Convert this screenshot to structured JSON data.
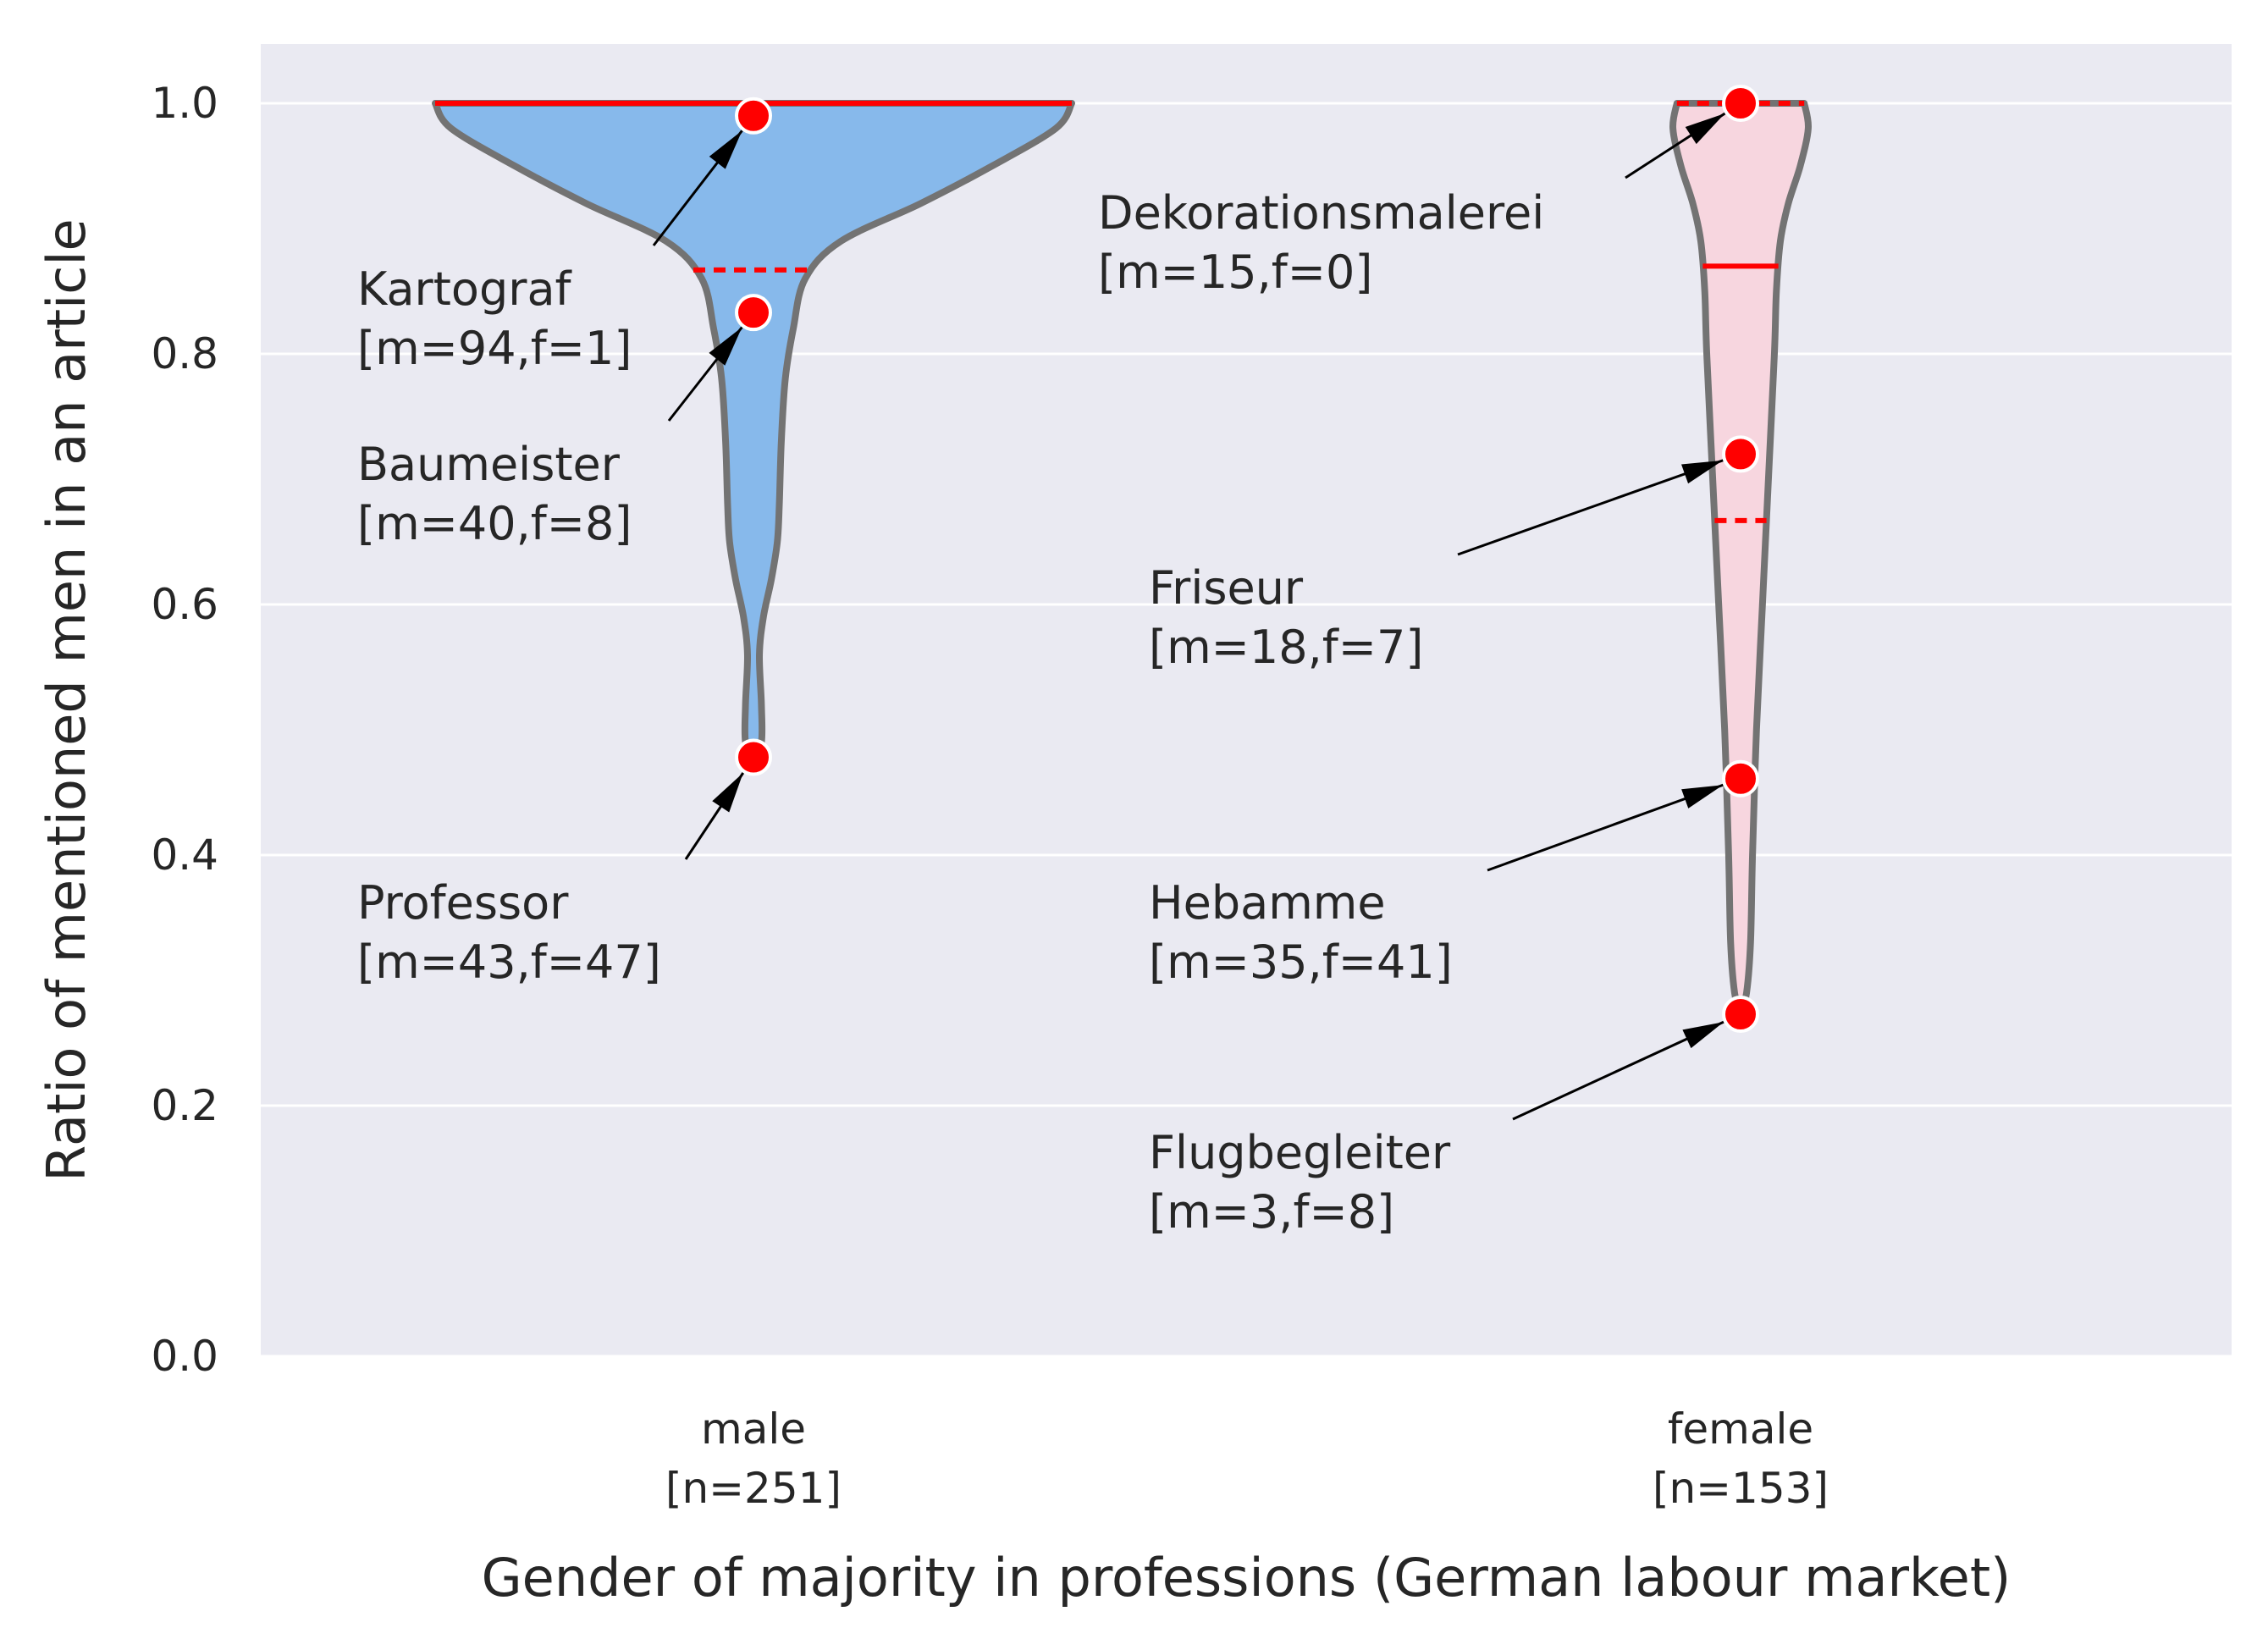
{
  "chart_data": {
    "type": "violin",
    "xlabel": "Gender of majority in professions (German labour market)",
    "ylabel": "Ratio of mentioned men in an article",
    "ylim": [
      0.0,
      1.05
    ],
    "yticks": [
      "0.0",
      "0.2",
      "0.4",
      "0.6",
      "0.8",
      "1.0"
    ],
    "grid": true,
    "categories": [
      {
        "key": "male",
        "label": "male",
        "n_label": "[n=251]",
        "color": "#87b9eb",
        "median": 1.0,
        "quartile": 0.867,
        "min": 0.477,
        "max": 1.0,
        "density": [
          {
            "y": 1.0,
            "w": 0.8
          },
          {
            "y": 0.98,
            "w": 0.76
          },
          {
            "y": 0.95,
            "w": 0.6
          },
          {
            "y": 0.92,
            "w": 0.42
          },
          {
            "y": 0.89,
            "w": 0.22
          },
          {
            "y": 0.86,
            "w": 0.13
          },
          {
            "y": 0.82,
            "w": 0.1
          },
          {
            "y": 0.78,
            "w": 0.08
          },
          {
            "y": 0.73,
            "w": 0.07
          },
          {
            "y": 0.68,
            "w": 0.065
          },
          {
            "y": 0.65,
            "w": 0.06
          },
          {
            "y": 0.62,
            "w": 0.045
          },
          {
            "y": 0.59,
            "w": 0.025
          },
          {
            "y": 0.56,
            "w": 0.015
          },
          {
            "y": 0.52,
            "w": 0.02
          },
          {
            "y": 0.49,
            "w": 0.02
          },
          {
            "y": 0.477,
            "w": 0.0
          }
        ],
        "points": [
          {
            "label": "Kartograf",
            "counts": "[m=94,f=1]",
            "value": 0.99
          },
          {
            "label": "Baumeister",
            "counts": "[m=40,f=8]",
            "value": 0.833
          },
          {
            "label": "Professor",
            "counts": "[m=43,f=47]",
            "value": 0.478
          }
        ]
      },
      {
        "key": "female",
        "label": "female",
        "n_label": "[n=153]",
        "color": "#f7d6df",
        "median": 0.87,
        "quartile": 0.667,
        "upper_quartile": 1.0,
        "min": 0.273,
        "max": 1.0,
        "density": [
          {
            "y": 1.0,
            "w": 0.16
          },
          {
            "y": 0.98,
            "w": 0.17
          },
          {
            "y": 0.95,
            "w": 0.15
          },
          {
            "y": 0.92,
            "w": 0.12
          },
          {
            "y": 0.89,
            "w": 0.1
          },
          {
            "y": 0.85,
            "w": 0.09
          },
          {
            "y": 0.8,
            "w": 0.085
          },
          {
            "y": 0.7,
            "w": 0.07
          },
          {
            "y": 0.6,
            "w": 0.055
          },
          {
            "y": 0.5,
            "w": 0.04
          },
          {
            "y": 0.4,
            "w": 0.03
          },
          {
            "y": 0.33,
            "w": 0.025
          },
          {
            "y": 0.29,
            "w": 0.015
          },
          {
            "y": 0.273,
            "w": 0.0
          }
        ],
        "points": [
          {
            "label": "Dekorationsmalerei",
            "counts": "[m=15,f=0]",
            "value": 1.0
          },
          {
            "label": "Friseur",
            "counts": "[m=18,f=7]",
            "value": 0.72
          },
          {
            "label": "Hebamme",
            "counts": "[m=35,f=41]",
            "value": 0.461
          },
          {
            "label": "Flugbegleiter",
            "counts": "[m=3,f=8]",
            "value": 0.273
          }
        ]
      }
    ],
    "colors": {
      "plot_background": "#eaeaf2",
      "gridline": "#ffffff",
      "outline": "#737373",
      "stat_line": "#ff0000",
      "point": "#ff0000"
    }
  }
}
